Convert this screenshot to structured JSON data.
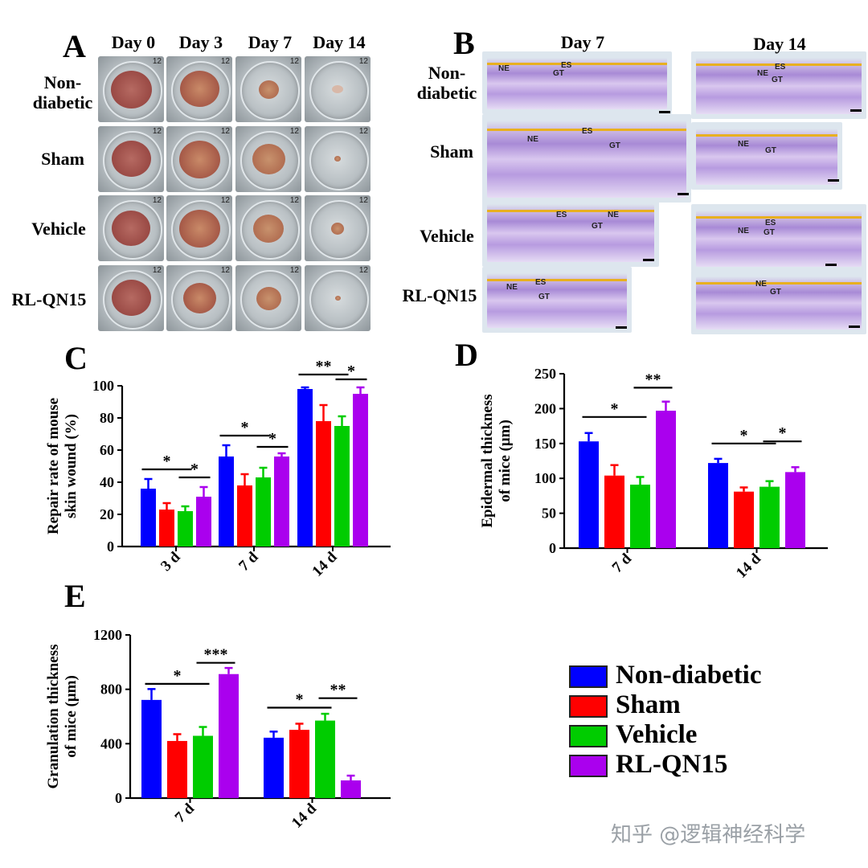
{
  "panels": {
    "A": {
      "letter": "A",
      "columns": [
        "Day 0",
        "Day 3",
        "Day 7",
        "Day 14"
      ],
      "rows": [
        "Non-\ndiabetic",
        "Sham",
        "Vehicle",
        "RL-QN15"
      ],
      "dish_label": "12"
    },
    "B": {
      "letter": "B",
      "columns": [
        "Day 7",
        "Day 14"
      ],
      "rows": [
        "Non-\ndiabetic",
        "Sham",
        "Vehicle",
        "RL-QN15"
      ],
      "tissue_labels": {
        "ne": "NE",
        "es": "ES",
        "gt": "GT"
      }
    },
    "C": {
      "letter": "C"
    },
    "D": {
      "letter": "D"
    },
    "E": {
      "letter": "E"
    }
  },
  "colors": {
    "Non-diabetic": "#0000ff",
    "Sham": "#ff0000",
    "Vehicle": "#00cc00",
    "RL-QN15": "#aa00ee"
  },
  "legend": [
    "Non-diabetic",
    "Sham",
    "Vehicle",
    "RL-QN15"
  ],
  "watermark": "知乎 @逻辑神经科学",
  "chart_data": [
    {
      "panel": "C",
      "type": "bar",
      "ylabel": "Repair rate of mouse skin wound (%)",
      "ylim": [
        0,
        100
      ],
      "yticks": [
        0,
        20,
        40,
        60,
        80,
        100
      ],
      "categories": [
        "3 d",
        "7 d",
        "14 d"
      ],
      "series": [
        {
          "name": "Non-diabetic",
          "values": [
            36,
            56,
            98
          ],
          "errors": [
            6,
            7,
            1
          ]
        },
        {
          "name": "Sham",
          "values": [
            23,
            38,
            78
          ],
          "errors": [
            4,
            7,
            10
          ]
        },
        {
          "name": "Vehicle",
          "values": [
            22,
            43,
            75
          ],
          "errors": [
            3,
            6,
            6
          ]
        },
        {
          "name": "RL-QN15",
          "values": [
            31,
            56,
            95
          ],
          "errors": [
            6,
            2,
            4
          ]
        }
      ],
      "significance": [
        {
          "category": 0,
          "from": 0,
          "to": 2,
          "label": "*",
          "y": 48
        },
        {
          "category": 0,
          "from": 2,
          "to": 3,
          "label": "*",
          "y": 43
        },
        {
          "category": 1,
          "from": 0,
          "to": 2,
          "label": "*",
          "y": 69
        },
        {
          "category": 1,
          "from": 2,
          "to": 3,
          "label": "*",
          "y": 62
        },
        {
          "category": 2,
          "from": 0,
          "to": 2,
          "label": "**",
          "y": 107
        },
        {
          "category": 2,
          "from": 2,
          "to": 3,
          "label": "*",
          "y": 104
        }
      ]
    },
    {
      "panel": "D",
      "type": "bar",
      "ylabel": "Epidermal thickness of mice (μm)",
      "ylim": [
        0,
        250
      ],
      "yticks": [
        0,
        50,
        100,
        150,
        200,
        250
      ],
      "categories": [
        "7 d",
        "14 d"
      ],
      "series": [
        {
          "name": "Non-diabetic",
          "values": [
            153,
            122
          ],
          "errors": [
            12,
            6
          ]
        },
        {
          "name": "Sham",
          "values": [
            104,
            81
          ],
          "errors": [
            15,
            6
          ]
        },
        {
          "name": "Vehicle",
          "values": [
            91,
            88
          ],
          "errors": [
            11,
            8
          ]
        },
        {
          "name": "RL-QN15",
          "values": [
            197,
            109
          ],
          "errors": [
            13,
            7
          ]
        }
      ],
      "significance": [
        {
          "category": 0,
          "from": 0,
          "to": 2,
          "label": "*",
          "y": 188
        },
        {
          "category": 0,
          "from": 2,
          "to": 3,
          "label": "**",
          "y": 230
        },
        {
          "category": 1,
          "from": 0,
          "to": 2,
          "label": "*",
          "y": 150
        },
        {
          "category": 1,
          "from": 2,
          "to": 3,
          "label": "*",
          "y": 153
        }
      ]
    },
    {
      "panel": "E",
      "type": "bar",
      "ylabel": "Granulation thickness of mice (μm)",
      "ylim": [
        0,
        1200
      ],
      "yticks": [
        0,
        400,
        800,
        1200
      ],
      "categories": [
        "7 d",
        "14 d"
      ],
      "series": [
        {
          "name": "Non-diabetic",
          "values": [
            722,
            444
          ],
          "errors": [
            80,
            45
          ]
        },
        {
          "name": "Sham",
          "values": [
            420,
            502
          ],
          "errors": [
            50,
            45
          ]
        },
        {
          "name": "Vehicle",
          "values": [
            458,
            570
          ],
          "errors": [
            65,
            50
          ]
        },
        {
          "name": "RL-QN15",
          "values": [
            912,
            130
          ],
          "errors": [
            45,
            35
          ]
        }
      ],
      "significance": [
        {
          "category": 0,
          "from": 0,
          "to": 2,
          "label": "*",
          "y": 840
        },
        {
          "category": 0,
          "from": 2,
          "to": 3,
          "label": "***",
          "y": 995
        },
        {
          "category": 1,
          "from": 0,
          "to": 2,
          "label": "*",
          "y": 665
        },
        {
          "category": 1,
          "from": 2,
          "to": 3,
          "label": "**",
          "y": 735
        }
      ]
    }
  ]
}
